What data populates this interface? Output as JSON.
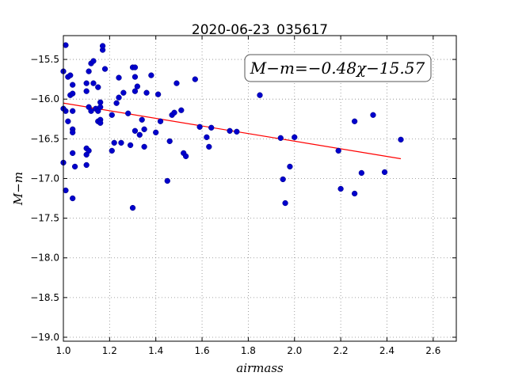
{
  "chart_data": {
    "type": "scatter",
    "title": "2020-06-23_035617",
    "xlabel": "airmass",
    "ylabel": "M−m",
    "xlim": [
      1.0,
      2.7
    ],
    "ylim": [
      -19.05,
      -15.2
    ],
    "x_ticks": [
      1.0,
      1.2,
      1.4,
      1.6,
      1.8,
      2.0,
      2.2,
      2.4,
      2.6
    ],
    "x_tick_labels": [
      "1.0",
      "1.2",
      "1.4",
      "1.6",
      "1.8",
      "2.0",
      "2.2",
      "2.4",
      "2.6"
    ],
    "y_ticks": [
      -15.5,
      -16.0,
      -16.5,
      -17.0,
      -17.5,
      -18.0,
      -18.5,
      -19.0
    ],
    "y_tick_labels": [
      "−15.5",
      "−16.0",
      "−16.5",
      "−17.0",
      "−17.5",
      "−18.0",
      "−18.5",
      "−19.0"
    ],
    "grid": true,
    "annotation": "M−m=−0.48χ−15.57",
    "series": [
      {
        "color": "#0000cc",
        "points": [
          [
            1.01,
            -15.32
          ],
          [
            1.0,
            -15.65
          ],
          [
            1.02,
            -15.72
          ],
          [
            1.03,
            -15.7
          ],
          [
            1.04,
            -15.82
          ],
          [
            1.03,
            -15.95
          ],
          [
            1.04,
            -15.93
          ],
          [
            1.01,
            -16.15
          ],
          [
            1.0,
            -16.12
          ],
          [
            1.04,
            -16.15
          ],
          [
            1.02,
            -16.28
          ],
          [
            1.04,
            -16.38
          ],
          [
            1.04,
            -16.42
          ],
          [
            1.04,
            -16.68
          ],
          [
            1.05,
            -16.85
          ],
          [
            1.0,
            -16.8
          ],
          [
            1.01,
            -17.15
          ],
          [
            1.04,
            -17.25
          ],
          [
            1.1,
            -15.8
          ],
          [
            1.1,
            -15.9
          ],
          [
            1.11,
            -15.65
          ],
          [
            1.12,
            -15.55
          ],
          [
            1.13,
            -15.52
          ],
          [
            1.13,
            -15.8
          ],
          [
            1.15,
            -15.85
          ],
          [
            1.11,
            -16.1
          ],
          [
            1.12,
            -16.15
          ],
          [
            1.14,
            -16.12
          ],
          [
            1.15,
            -16.15
          ],
          [
            1.16,
            -16.04
          ],
          [
            1.16,
            -16.1
          ],
          [
            1.15,
            -16.28
          ],
          [
            1.16,
            -16.26
          ],
          [
            1.16,
            -16.3
          ],
          [
            1.1,
            -16.62
          ],
          [
            1.11,
            -16.65
          ],
          [
            1.1,
            -16.7
          ],
          [
            1.1,
            -16.83
          ],
          [
            1.17,
            -15.38
          ],
          [
            1.17,
            -15.33
          ],
          [
            1.18,
            -15.62
          ],
          [
            1.21,
            -16.2
          ],
          [
            1.21,
            -16.65
          ],
          [
            1.22,
            -16.55
          ],
          [
            1.23,
            -16.05
          ],
          [
            1.24,
            -15.98
          ],
          [
            1.24,
            -15.73
          ],
          [
            1.25,
            -16.55
          ],
          [
            1.26,
            -15.92
          ],
          [
            1.28,
            -16.18
          ],
          [
            1.29,
            -16.58
          ],
          [
            1.3,
            -15.6
          ],
          [
            1.31,
            -15.6
          ],
          [
            1.31,
            -15.72
          ],
          [
            1.31,
            -15.9
          ],
          [
            1.31,
            -16.4
          ],
          [
            1.3,
            -17.37
          ],
          [
            1.32,
            -15.84
          ],
          [
            1.33,
            -16.45
          ],
          [
            1.34,
            -16.26
          ],
          [
            1.35,
            -16.6
          ],
          [
            1.35,
            -16.38
          ],
          [
            1.36,
            -15.92
          ],
          [
            1.38,
            -15.7
          ],
          [
            1.4,
            -16.42
          ],
          [
            1.41,
            -15.94
          ],
          [
            1.42,
            -16.28
          ],
          [
            1.45,
            -17.03
          ],
          [
            1.46,
            -16.53
          ],
          [
            1.47,
            -16.2
          ],
          [
            1.48,
            -16.17
          ],
          [
            1.49,
            -15.8
          ],
          [
            1.51,
            -16.14
          ],
          [
            1.52,
            -16.68
          ],
          [
            1.53,
            -16.72
          ],
          [
            1.57,
            -15.75
          ],
          [
            1.59,
            -16.35
          ],
          [
            1.62,
            -16.48
          ],
          [
            1.63,
            -16.6
          ],
          [
            1.64,
            -16.36
          ],
          [
            1.72,
            -16.4
          ],
          [
            1.75,
            -16.41
          ],
          [
            1.85,
            -15.95
          ],
          [
            1.94,
            -16.49
          ],
          [
            1.95,
            -17.01
          ],
          [
            1.96,
            -17.31
          ],
          [
            1.98,
            -16.85
          ],
          [
            2.0,
            -16.48
          ],
          [
            2.19,
            -16.65
          ],
          [
            2.2,
            -17.13
          ],
          [
            2.26,
            -16.28
          ],
          [
            2.26,
            -17.19
          ],
          [
            2.29,
            -16.93
          ],
          [
            2.34,
            -16.2
          ],
          [
            2.39,
            -16.92
          ],
          [
            2.46,
            -16.51
          ]
        ]
      }
    ],
    "fit_line": {
      "color": "#ff0000",
      "slope": -0.48,
      "intercept": -15.57,
      "x_range": [
        1.0,
        2.46
      ]
    }
  }
}
